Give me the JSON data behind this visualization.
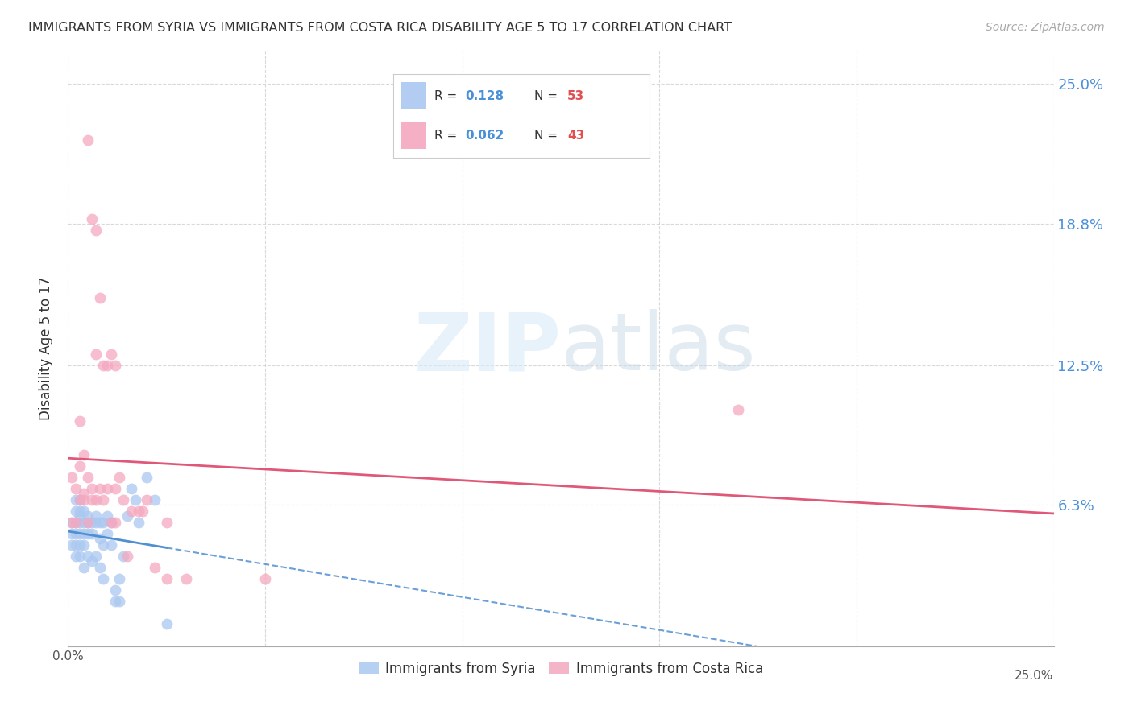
{
  "title": "IMMIGRANTS FROM SYRIA VS IMMIGRANTS FROM COSTA RICA DISABILITY AGE 5 TO 17 CORRELATION CHART",
  "source": "Source: ZipAtlas.com",
  "ylabel": "Disability Age 5 to 17",
  "xlim": [
    0.0,
    0.25
  ],
  "ylim": [
    0.0,
    0.265
  ],
  "ytick_positions": [
    0.0,
    0.063,
    0.125,
    0.188,
    0.25
  ],
  "ytick_labels_right": [
    "",
    "6.3%",
    "12.5%",
    "18.8%",
    "25.0%"
  ],
  "grid_color": "#d0d0d0",
  "background_color": "#ffffff",
  "syria_color": "#aac8f0",
  "costa_rica_color": "#f4a8c0",
  "syria_line_color": "#5090d0",
  "costa_rica_line_color": "#e05878",
  "syria_R": 0.128,
  "syria_N": 53,
  "costa_rica_R": 0.062,
  "costa_rica_N": 43,
  "legend_label_syria": "Immigrants from Syria",
  "legend_label_cr": "Immigrants from Costa Rica",
  "watermark": "ZIPatlas",
  "syria_x": [
    0.001,
    0.001,
    0.001,
    0.002,
    0.002,
    0.002,
    0.002,
    0.002,
    0.002,
    0.003,
    0.003,
    0.003,
    0.003,
    0.003,
    0.003,
    0.003,
    0.004,
    0.004,
    0.004,
    0.004,
    0.004,
    0.005,
    0.005,
    0.005,
    0.005,
    0.006,
    0.006,
    0.006,
    0.007,
    0.007,
    0.007,
    0.008,
    0.008,
    0.008,
    0.009,
    0.009,
    0.009,
    0.01,
    0.01,
    0.011,
    0.011,
    0.012,
    0.012,
    0.013,
    0.013,
    0.014,
    0.015,
    0.016,
    0.017,
    0.018,
    0.02,
    0.022,
    0.025
  ],
  "syria_y": [
    0.055,
    0.05,
    0.045,
    0.065,
    0.06,
    0.055,
    0.05,
    0.045,
    0.04,
    0.065,
    0.06,
    0.058,
    0.055,
    0.05,
    0.045,
    0.04,
    0.06,
    0.055,
    0.05,
    0.045,
    0.035,
    0.058,
    0.055,
    0.05,
    0.04,
    0.055,
    0.05,
    0.038,
    0.058,
    0.055,
    0.04,
    0.055,
    0.048,
    0.035,
    0.055,
    0.045,
    0.03,
    0.058,
    0.05,
    0.055,
    0.045,
    0.025,
    0.02,
    0.03,
    0.02,
    0.04,
    0.058,
    0.07,
    0.065,
    0.055,
    0.075,
    0.065,
    0.01
  ],
  "costa_rica_x": [
    0.001,
    0.001,
    0.002,
    0.002,
    0.003,
    0.003,
    0.004,
    0.004,
    0.005,
    0.005,
    0.005,
    0.006,
    0.006,
    0.007,
    0.007,
    0.007,
    0.008,
    0.008,
    0.009,
    0.009,
    0.01,
    0.01,
    0.011,
    0.011,
    0.012,
    0.012,
    0.012,
    0.013,
    0.014,
    0.015,
    0.016,
    0.018,
    0.019,
    0.02,
    0.022,
    0.025,
    0.025,
    0.03,
    0.05,
    0.17,
    0.003,
    0.004,
    0.006
  ],
  "costa_rica_y": [
    0.075,
    0.055,
    0.07,
    0.055,
    0.08,
    0.065,
    0.085,
    0.068,
    0.225,
    0.075,
    0.055,
    0.19,
    0.07,
    0.185,
    0.13,
    0.065,
    0.155,
    0.07,
    0.125,
    0.065,
    0.125,
    0.07,
    0.13,
    0.055,
    0.125,
    0.07,
    0.055,
    0.075,
    0.065,
    0.04,
    0.06,
    0.06,
    0.06,
    0.065,
    0.035,
    0.055,
    0.03,
    0.03,
    0.03,
    0.105,
    0.1,
    0.065,
    0.065
  ]
}
